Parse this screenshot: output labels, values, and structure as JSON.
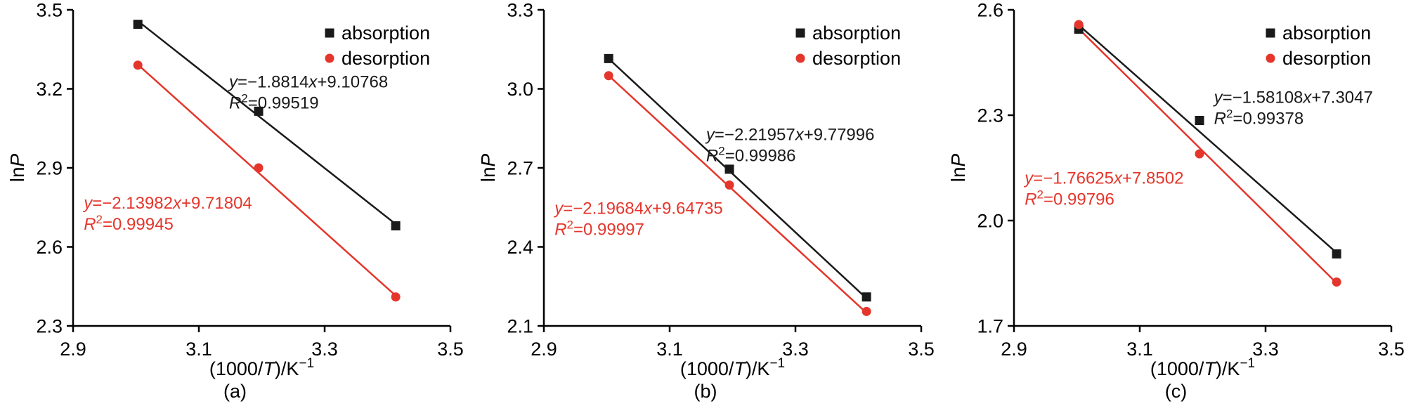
{
  "colors": {
    "axis": "#000000",
    "background": "#ffffff",
    "absorption": "#1a1a1a",
    "desorption": "#e4362c"
  },
  "chart_data": [
    {
      "type": "scatter",
      "panel_label": "(a)",
      "x_axis": {
        "range": [
          2.9,
          3.5
        ],
        "ticks": [
          2.9,
          3.1,
          3.3,
          3.5
        ],
        "tick_labels": [
          "2.9",
          "3.1",
          "3.3",
          "3.5"
        ],
        "label": {
          "pre": "(1000/",
          "var": "T",
          "post": ")/K",
          "sup": "−1"
        }
      },
      "y_axis": {
        "range": [
          2.3,
          3.5
        ],
        "ticks": [
          2.3,
          2.6,
          2.9,
          3.2,
          3.5
        ],
        "tick_labels": [
          "2.3",
          "2.6",
          "2.9",
          "3.2",
          "3.5"
        ],
        "label": {
          "pre": "ln",
          "var": "P"
        }
      },
      "series": [
        {
          "name": "absorption",
          "marker": "square",
          "color": "#1a1a1a",
          "slope": -1.8814,
          "intercept": 9.10768,
          "slope_label": "−1.8814",
          "intercept_label": "+9.10768",
          "r2_label": "0.99519",
          "points": [
            [
              3.003,
              3.445
            ],
            [
              3.195,
              3.115
            ],
            [
              3.413,
              2.68
            ]
          ],
          "line_x": [
            3.003,
            3.413
          ],
          "annotation_xy": [
            3.148,
            3.205
          ]
        },
        {
          "name": "desorption",
          "marker": "circle",
          "color": "#e4362c",
          "slope": -2.13982,
          "intercept": 9.71804,
          "slope_label": "−2.13982",
          "intercept_label": "+9.71804",
          "r2_label": "0.99945",
          "points": [
            [
              3.003,
              3.29
            ],
            [
              3.195,
              2.9
            ],
            [
              3.413,
              2.41
            ]
          ],
          "line_x": [
            3.003,
            3.413
          ],
          "annotation_xy": [
            2.917,
            2.745
          ]
        }
      ]
    },
    {
      "type": "scatter",
      "panel_label": "(b)",
      "x_axis": {
        "range": [
          2.9,
          3.5
        ],
        "ticks": [
          2.9,
          3.1,
          3.3,
          3.5
        ],
        "tick_labels": [
          "2.9",
          "3.1",
          "3.3",
          "3.5"
        ],
        "label": {
          "pre": "(1000/",
          "var": "T",
          "post": ")/K",
          "sup": "−1"
        }
      },
      "y_axis": {
        "range": [
          2.1,
          3.3
        ],
        "ticks": [
          2.1,
          2.4,
          2.7,
          3.0,
          3.3
        ],
        "tick_labels": [
          "2.1",
          "2.4",
          "2.7",
          "3.0",
          "3.3"
        ],
        "label": {
          "pre": "ln",
          "var": "P"
        }
      },
      "series": [
        {
          "name": "absorption",
          "marker": "square",
          "color": "#1a1a1a",
          "slope": -2.21957,
          "intercept": 9.77996,
          "slope_label": "−2.21957",
          "intercept_label": "+9.77996",
          "r2_label": "0.99986",
          "points": [
            [
              3.003,
              3.115
            ],
            [
              3.195,
              2.695
            ],
            [
              3.413,
              2.21
            ]
          ],
          "line_x": [
            3.003,
            3.413
          ],
          "annotation_xy": [
            3.158,
            2.805
          ]
        },
        {
          "name": "desorption",
          "marker": "circle",
          "color": "#e4362c",
          "slope": -2.19684,
          "intercept": 9.64735,
          "slope_label": "−2.19684",
          "intercept_label": "+9.64735",
          "r2_label": "0.99997",
          "points": [
            [
              3.003,
              3.05
            ],
            [
              3.195,
              2.635
            ],
            [
              3.413,
              2.155
            ]
          ],
          "line_x": [
            3.003,
            3.413
          ],
          "annotation_xy": [
            2.917,
            2.525
          ]
        }
      ]
    },
    {
      "type": "scatter",
      "panel_label": "(c)",
      "x_axis": {
        "range": [
          2.9,
          3.5
        ],
        "ticks": [
          2.9,
          3.1,
          3.3,
          3.5
        ],
        "tick_labels": [
          "2.9",
          "3.1",
          "3.3",
          "3.5"
        ],
        "label": {
          "pre": "(1000/",
          "var": "T",
          "post": ")/K",
          "sup": "−1"
        }
      },
      "y_axis": {
        "range": [
          1.7,
          2.6
        ],
        "ticks": [
          1.7,
          2.0,
          2.3,
          2.6
        ],
        "tick_labels": [
          "1.7",
          "2.0",
          "2.3",
          "2.6"
        ],
        "label": {
          "pre": "ln",
          "var": "P"
        }
      },
      "series": [
        {
          "name": "absorption",
          "marker": "square",
          "color": "#1a1a1a",
          "slope": -1.58108,
          "intercept": 7.3047,
          "slope_label": "−1.58108",
          "intercept_label": "+7.3047",
          "r2_label": "0.99378",
          "points": [
            [
              3.003,
              2.545
            ],
            [
              3.195,
              2.285
            ],
            [
              3.413,
              1.905
            ]
          ],
          "line_x": [
            3.003,
            3.413
          ],
          "annotation_xy": [
            3.218,
            2.335
          ]
        },
        {
          "name": "desorption",
          "marker": "circle",
          "color": "#e4362c",
          "slope": -1.76625,
          "intercept": 7.8502,
          "slope_label": "−1.76625",
          "intercept_label": "+7.8502",
          "r2_label": "0.99796",
          "points": [
            [
              3.003,
              2.558
            ],
            [
              3.195,
              2.19
            ],
            [
              3.413,
              1.825
            ]
          ],
          "line_x": [
            3.003,
            3.413
          ],
          "annotation_xy": [
            2.917,
            2.105
          ]
        }
      ]
    }
  ]
}
